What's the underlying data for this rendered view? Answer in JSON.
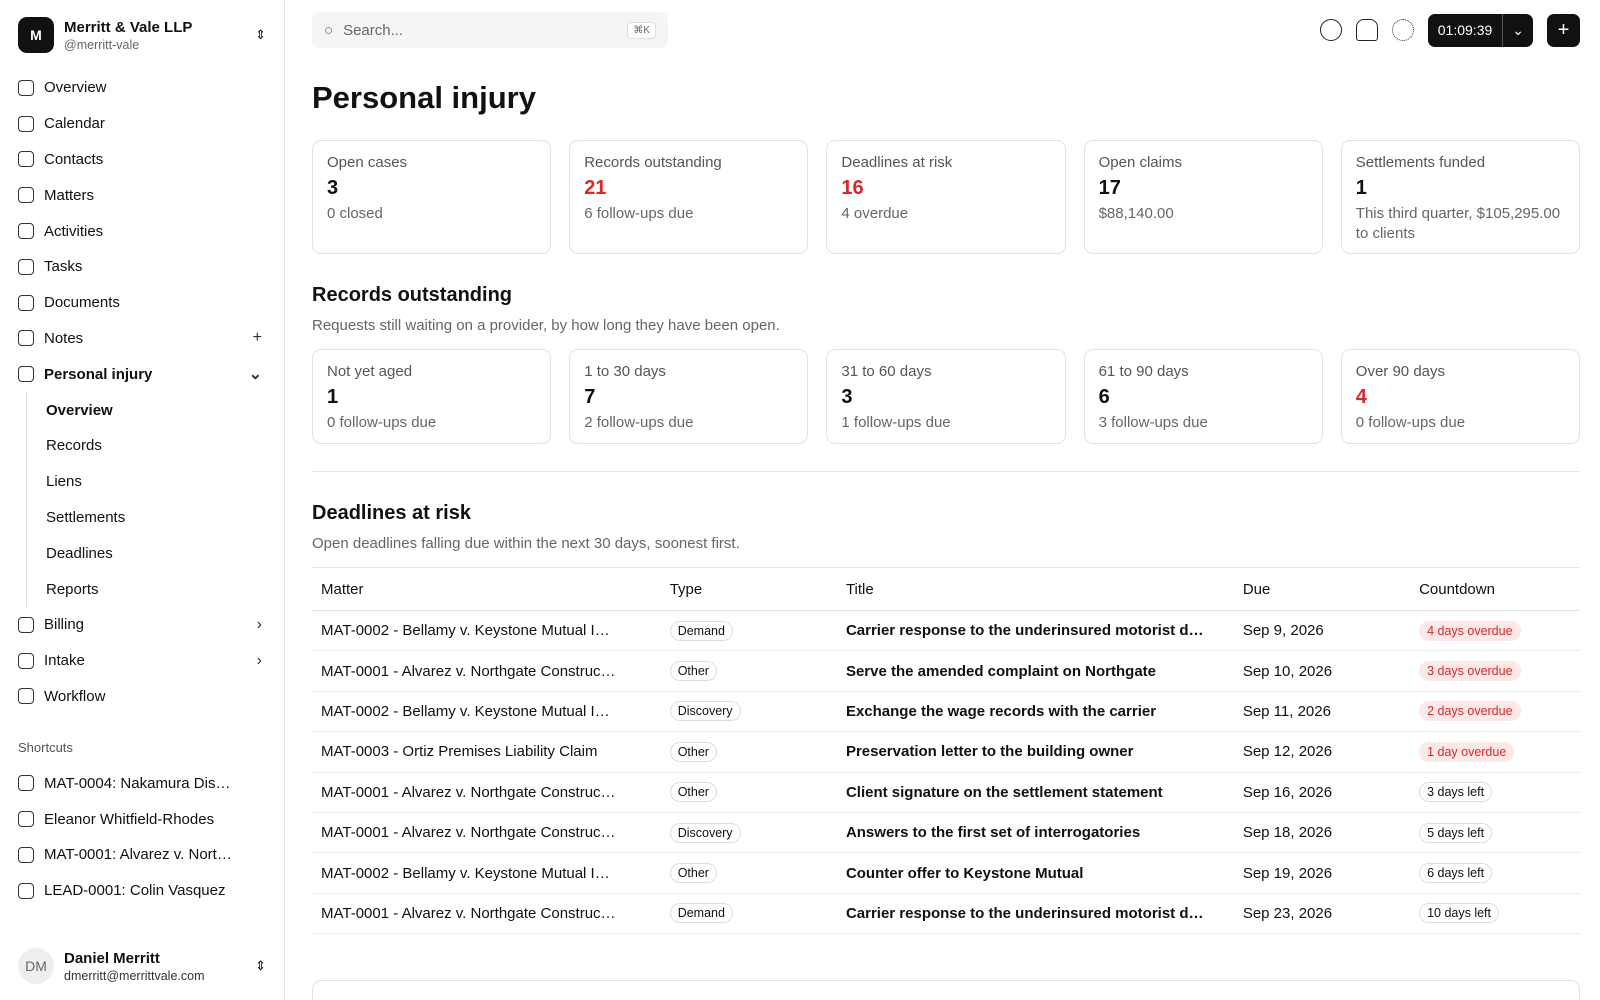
{
  "workspace": {
    "initial": "M",
    "name": "Merritt & Vale LLP",
    "handle": "@merritt-vale"
  },
  "nav": [
    {
      "label": "Overview"
    },
    {
      "label": "Calendar"
    },
    {
      "label": "Contacts"
    },
    {
      "label": "Matters"
    },
    {
      "label": "Activities"
    },
    {
      "label": "Tasks"
    },
    {
      "label": "Documents"
    },
    {
      "label": "Notes"
    },
    {
      "label": "Personal injury"
    }
  ],
  "subnav": [
    {
      "label": "Overview"
    },
    {
      "label": "Records"
    },
    {
      "label": "Liens"
    },
    {
      "label": "Settlements"
    },
    {
      "label": "Deadlines"
    },
    {
      "label": "Reports"
    }
  ],
  "nav_after": [
    {
      "label": "Billing"
    },
    {
      "label": "Intake"
    },
    {
      "label": "Workflow"
    }
  ],
  "shortcuts": {
    "title": "Shortcuts",
    "items": [
      "MAT-0004: Nakamura Dis…",
      "Eleanor Whitfield-Rhodes",
      "MAT-0001: Alvarez v. Nort…",
      "LEAD-0001: Colin Vasquez"
    ]
  },
  "user": {
    "initials": "DM",
    "name": "Daniel Merritt",
    "email": "dmerritt@merrittvale.com"
  },
  "topbar": {
    "search": "Search...",
    "shortcut": "⌘K",
    "timer": "01:09:39"
  },
  "page": {
    "title": "Personal injury"
  },
  "stats": [
    {
      "label": "Open cases",
      "value": 3,
      "sub": "0 closed"
    },
    {
      "label": "Records outstanding",
      "value": 21,
      "sub": "6 follow-ups due",
      "color": "#d42a2a"
    },
    {
      "label": "Deadlines at risk",
      "value": 16,
      "sub": "4 overdue",
      "color": "#d42a2a"
    },
    {
      "label": "Open claims",
      "value": 17,
      "sub": "$88,140.00"
    },
    {
      "label": "Settlements funded",
      "value": 1,
      "sub": "This third quarter, $105,295.00 to clients"
    }
  ],
  "records": {
    "title": "Records outstanding",
    "subtitle": "Requests still waiting on a provider, by how long they have been open.",
    "buckets": [
      {
        "label": "Not yet aged",
        "value": 1,
        "sub": "0 follow-ups due"
      },
      {
        "label": "1 to 30 days",
        "value": 7,
        "sub": "2 follow-ups due"
      },
      {
        "label": "31 to 60 days",
        "value": 3,
        "sub": "1 follow-ups due"
      },
      {
        "label": "61 to 90 days",
        "value": 6,
        "sub": "3 follow-ups due"
      },
      {
        "label": "Over 90 days",
        "value": 4,
        "sub": "0 follow-ups due",
        "color": "#d42a2a"
      }
    ]
  },
  "deadlines": {
    "title": "Deadlines at risk",
    "subtitle": "Open deadlines falling due within the next 30 days, soonest first.",
    "columns": [
      "Matter",
      "Type",
      "Title",
      "Due",
      "Countdown"
    ],
    "rows": [
      {
        "matter": "MAT-0002 - Bellamy v. Keystone Mutual I…",
        "type": "Demand",
        "title": "Carrier response to the underinsured motorist d…",
        "due": "Sep 9, 2026",
        "countdown": "4 days overdue",
        "color": "#d42a2a"
      },
      {
        "matter": "MAT-0001 - Alvarez v. Northgate Construc…",
        "type": "Other",
        "title": "Serve the amended complaint on Northgate",
        "due": "Sep 10, 2026",
        "countdown": "3 days overdue",
        "color": "#d42a2a"
      },
      {
        "matter": "MAT-0002 - Bellamy v. Keystone Mutual I…",
        "type": "Discovery",
        "title": "Exchange the wage records with the carrier",
        "due": "Sep 11, 2026",
        "countdown": "2 days overdue",
        "color": "#d42a2a"
      },
      {
        "matter": "MAT-0003 - Ortiz Premises Liability Claim",
        "type": "Other",
        "title": "Preservation letter to the building owner",
        "due": "Sep 12, 2026",
        "countdown": "1 day overdue",
        "color": "#d42a2a"
      },
      {
        "matter": "MAT-0001 - Alvarez v. Northgate Construc…",
        "type": "Other",
        "title": "Client signature on the settlement statement",
        "due": "Sep 16, 2026",
        "countdown": "3 days left"
      },
      {
        "matter": "MAT-0001 - Alvarez v. Northgate Construc…",
        "type": "Discovery",
        "title": "Answers to the first set of interrogatories",
        "due": "Sep 18, 2026",
        "countdown": "5 days left"
      },
      {
        "matter": "MAT-0002 - Bellamy v. Keystone Mutual I…",
        "type": "Other",
        "title": "Counter offer to Keystone Mutual",
        "due": "Sep 19, 2026",
        "countdown": "6 days left"
      },
      {
        "matter": "MAT-0001 - Alvarez v. Northgate Construc…",
        "type": "Demand",
        "title": "Carrier response to the underinsured motorist d…",
        "due": "Sep 23, 2026",
        "countdown": "10 days left"
      }
    ]
  }
}
